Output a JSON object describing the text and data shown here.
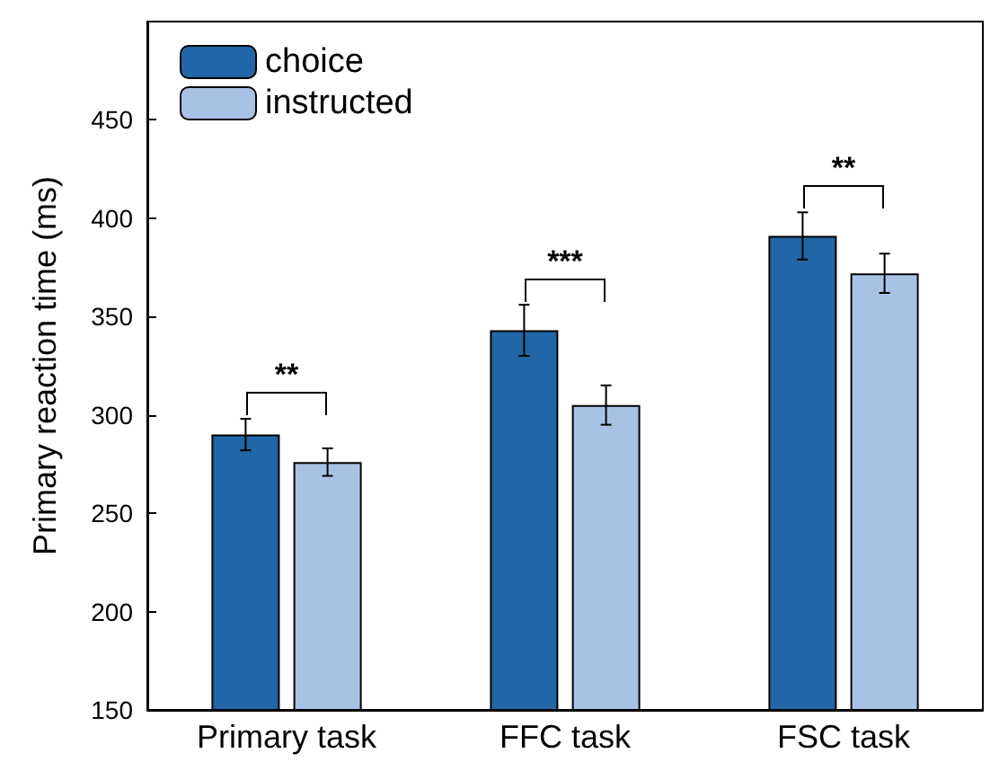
{
  "chart_data": {
    "type": "bar",
    "ylabel": "Primary reaction time (ms)",
    "categories": [
      "Primary task",
      "FFC task",
      "FSC task"
    ],
    "series": [
      {
        "name": "choice",
        "color": "#2166a6",
        "values": [
          290,
          343,
          391
        ],
        "errors": [
          8,
          13,
          12
        ]
      },
      {
        "name": "instructed",
        "color": "#a8c2e6",
        "values": [
          276,
          305,
          372
        ],
        "errors": [
          7,
          10,
          10
        ]
      }
    ],
    "ylim": [
      150,
      500
    ],
    "yticks": [
      150,
      200,
      250,
      300,
      350,
      400,
      450
    ],
    "grid": false,
    "legend": "top left",
    "annotations": [
      "**",
      "***",
      "**"
    ]
  }
}
